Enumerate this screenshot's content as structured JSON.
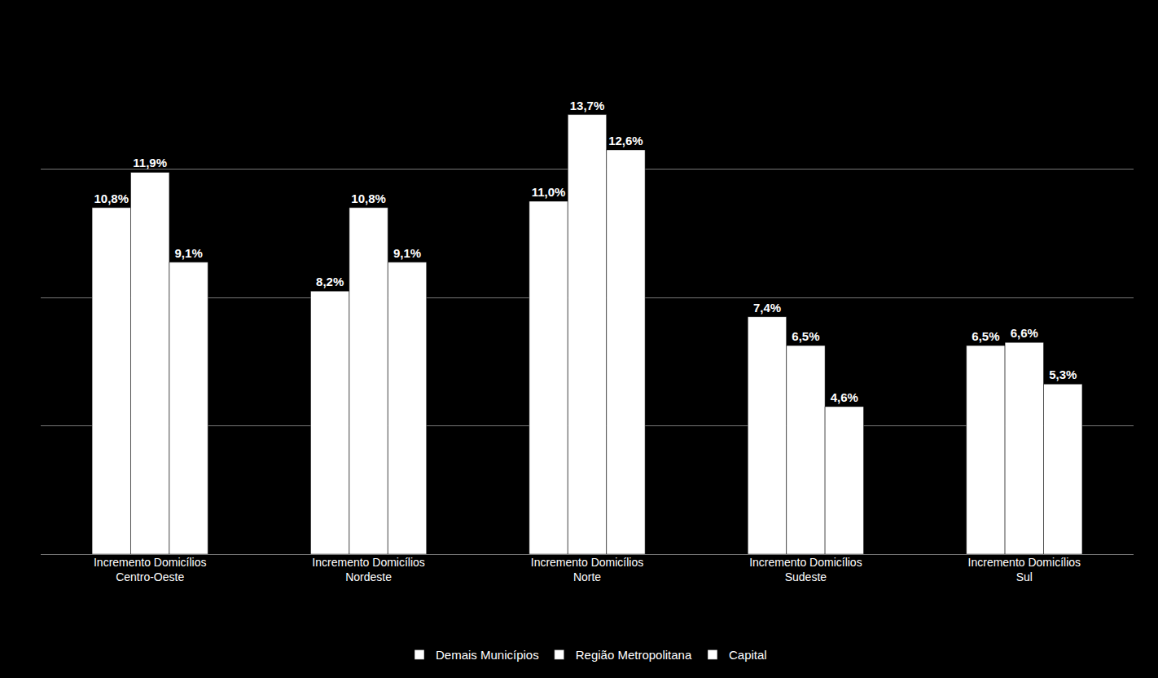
{
  "chart_data": {
    "type": "bar",
    "categories": [
      "Incremento Domicílios\nCentro-Oeste",
      "Incremento Domicílios\nNordeste",
      "Incremento Domicílios\nNorte",
      "Incremento Domicílios\nSudeste",
      "Incremento Domicílios\nSul"
    ],
    "series": [
      {
        "name": "Demais Municípios",
        "color": "#ffffff",
        "values": [
          10.8,
          8.2,
          11.0,
          7.4,
          6.5
        ],
        "value_labels": [
          "10,8%",
          "8,2%",
          "11,0%",
          "7,4%",
          "6,5%"
        ]
      },
      {
        "name": "Região Metropolitana",
        "color": "#ffffff",
        "values": [
          11.9,
          10.8,
          13.7,
          6.5,
          6.6
        ],
        "value_labels": [
          "11,9%",
          "10,8%",
          "13,7%",
          "6,5%",
          "6,6%"
        ]
      },
      {
        "name": "Capital",
        "color": "#ffffff",
        "values": [
          9.1,
          9.1,
          12.6,
          4.6,
          5.3
        ],
        "value_labels": [
          "9,1%",
          "9,1%",
          "12,6%",
          "4,6%",
          "5,3%"
        ]
      }
    ],
    "ylim": [
      0,
      16
    ],
    "yticks": [
      0,
      4,
      8,
      12,
      16
    ],
    "grid": true,
    "legend": "bottom",
    "data_labels": true,
    "tick_labels": "x"
  }
}
